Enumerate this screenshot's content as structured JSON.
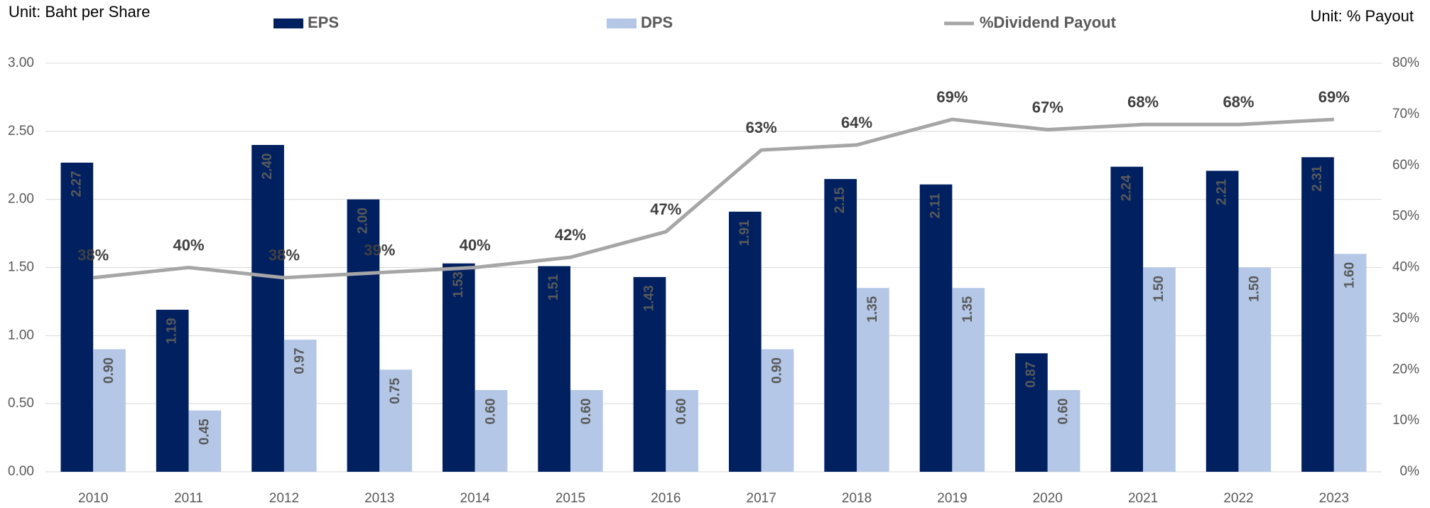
{
  "chart_data": {
    "type": "bar_line",
    "left_unit": "Unit: Baht per Share",
    "right_unit": "Unit: % Payout",
    "categories": [
      "2010",
      "2011",
      "2012",
      "2013",
      "2014",
      "2015",
      "2016",
      "2017",
      "2018",
      "2019",
      "2020",
      "2021",
      "2022",
      "2023"
    ],
    "series": [
      {
        "name": "EPS",
        "color": "#002060",
        "type": "bar",
        "values": [
          2.27,
          1.19,
          2.4,
          2.0,
          1.53,
          1.51,
          1.43,
          1.91,
          2.15,
          2.11,
          0.87,
          2.24,
          2.21,
          2.31
        ],
        "value_labels": [
          "2.27",
          "1.19",
          "2.40",
          "2.00",
          "1.53",
          "1.51",
          "1.43",
          "1.91",
          "2.15",
          "2.11",
          "0.87",
          "2.24",
          "2.21",
          "2.31"
        ]
      },
      {
        "name": "DPS",
        "color": "#b4c7e7",
        "type": "bar",
        "values": [
          0.9,
          0.45,
          0.97,
          0.75,
          0.6,
          0.6,
          0.6,
          0.9,
          1.35,
          1.35,
          0.6,
          1.5,
          1.5,
          1.6
        ],
        "value_labels": [
          "0.90",
          "0.45",
          "0.97",
          "0.75",
          "0.60",
          "0.60",
          "0.60",
          "0.90",
          "1.35",
          "1.35",
          "0.60",
          "1.50",
          "1.50",
          "1.60"
        ]
      },
      {
        "name": "%Dividend Payout",
        "color": "#a6a6a6",
        "type": "line",
        "axis": "y2",
        "values": [
          38,
          40,
          38,
          39,
          40,
          42,
          47,
          63,
          64,
          69,
          67,
          68,
          68,
          69
        ],
        "value_labels": [
          "38%",
          "40%",
          "38%",
          "39%",
          "40%",
          "42%",
          "47%",
          "63%",
          "64%",
          "69%",
          "67%",
          "68%",
          "68%",
          "69%"
        ]
      }
    ],
    "ylim": [
      0,
      3
    ],
    "yticks": [
      {
        "value": 0,
        "label": "0.00"
      },
      {
        "value": 0.5,
        "label": "0.50"
      },
      {
        "value": 1,
        "label": "1.00"
      },
      {
        "value": 1.5,
        "label": "1.50"
      },
      {
        "value": 2,
        "label": "2.00"
      },
      {
        "value": 2.5,
        "label": "2.50"
      },
      {
        "value": 3,
        "label": "3.00"
      }
    ],
    "y2lim": [
      0,
      80
    ],
    "y2ticks": [
      {
        "value": 0,
        "label": "0%"
      },
      {
        "value": 10,
        "label": "10%"
      },
      {
        "value": 20,
        "label": "20%"
      },
      {
        "value": 30,
        "label": "30%"
      },
      {
        "value": 40,
        "label": "40%"
      },
      {
        "value": 50,
        "label": "50%"
      },
      {
        "value": 60,
        "label": "60%"
      },
      {
        "value": 70,
        "label": "70%"
      },
      {
        "value": 80,
        "label": "80%"
      }
    ],
    "grid": true,
    "legend": "top"
  }
}
